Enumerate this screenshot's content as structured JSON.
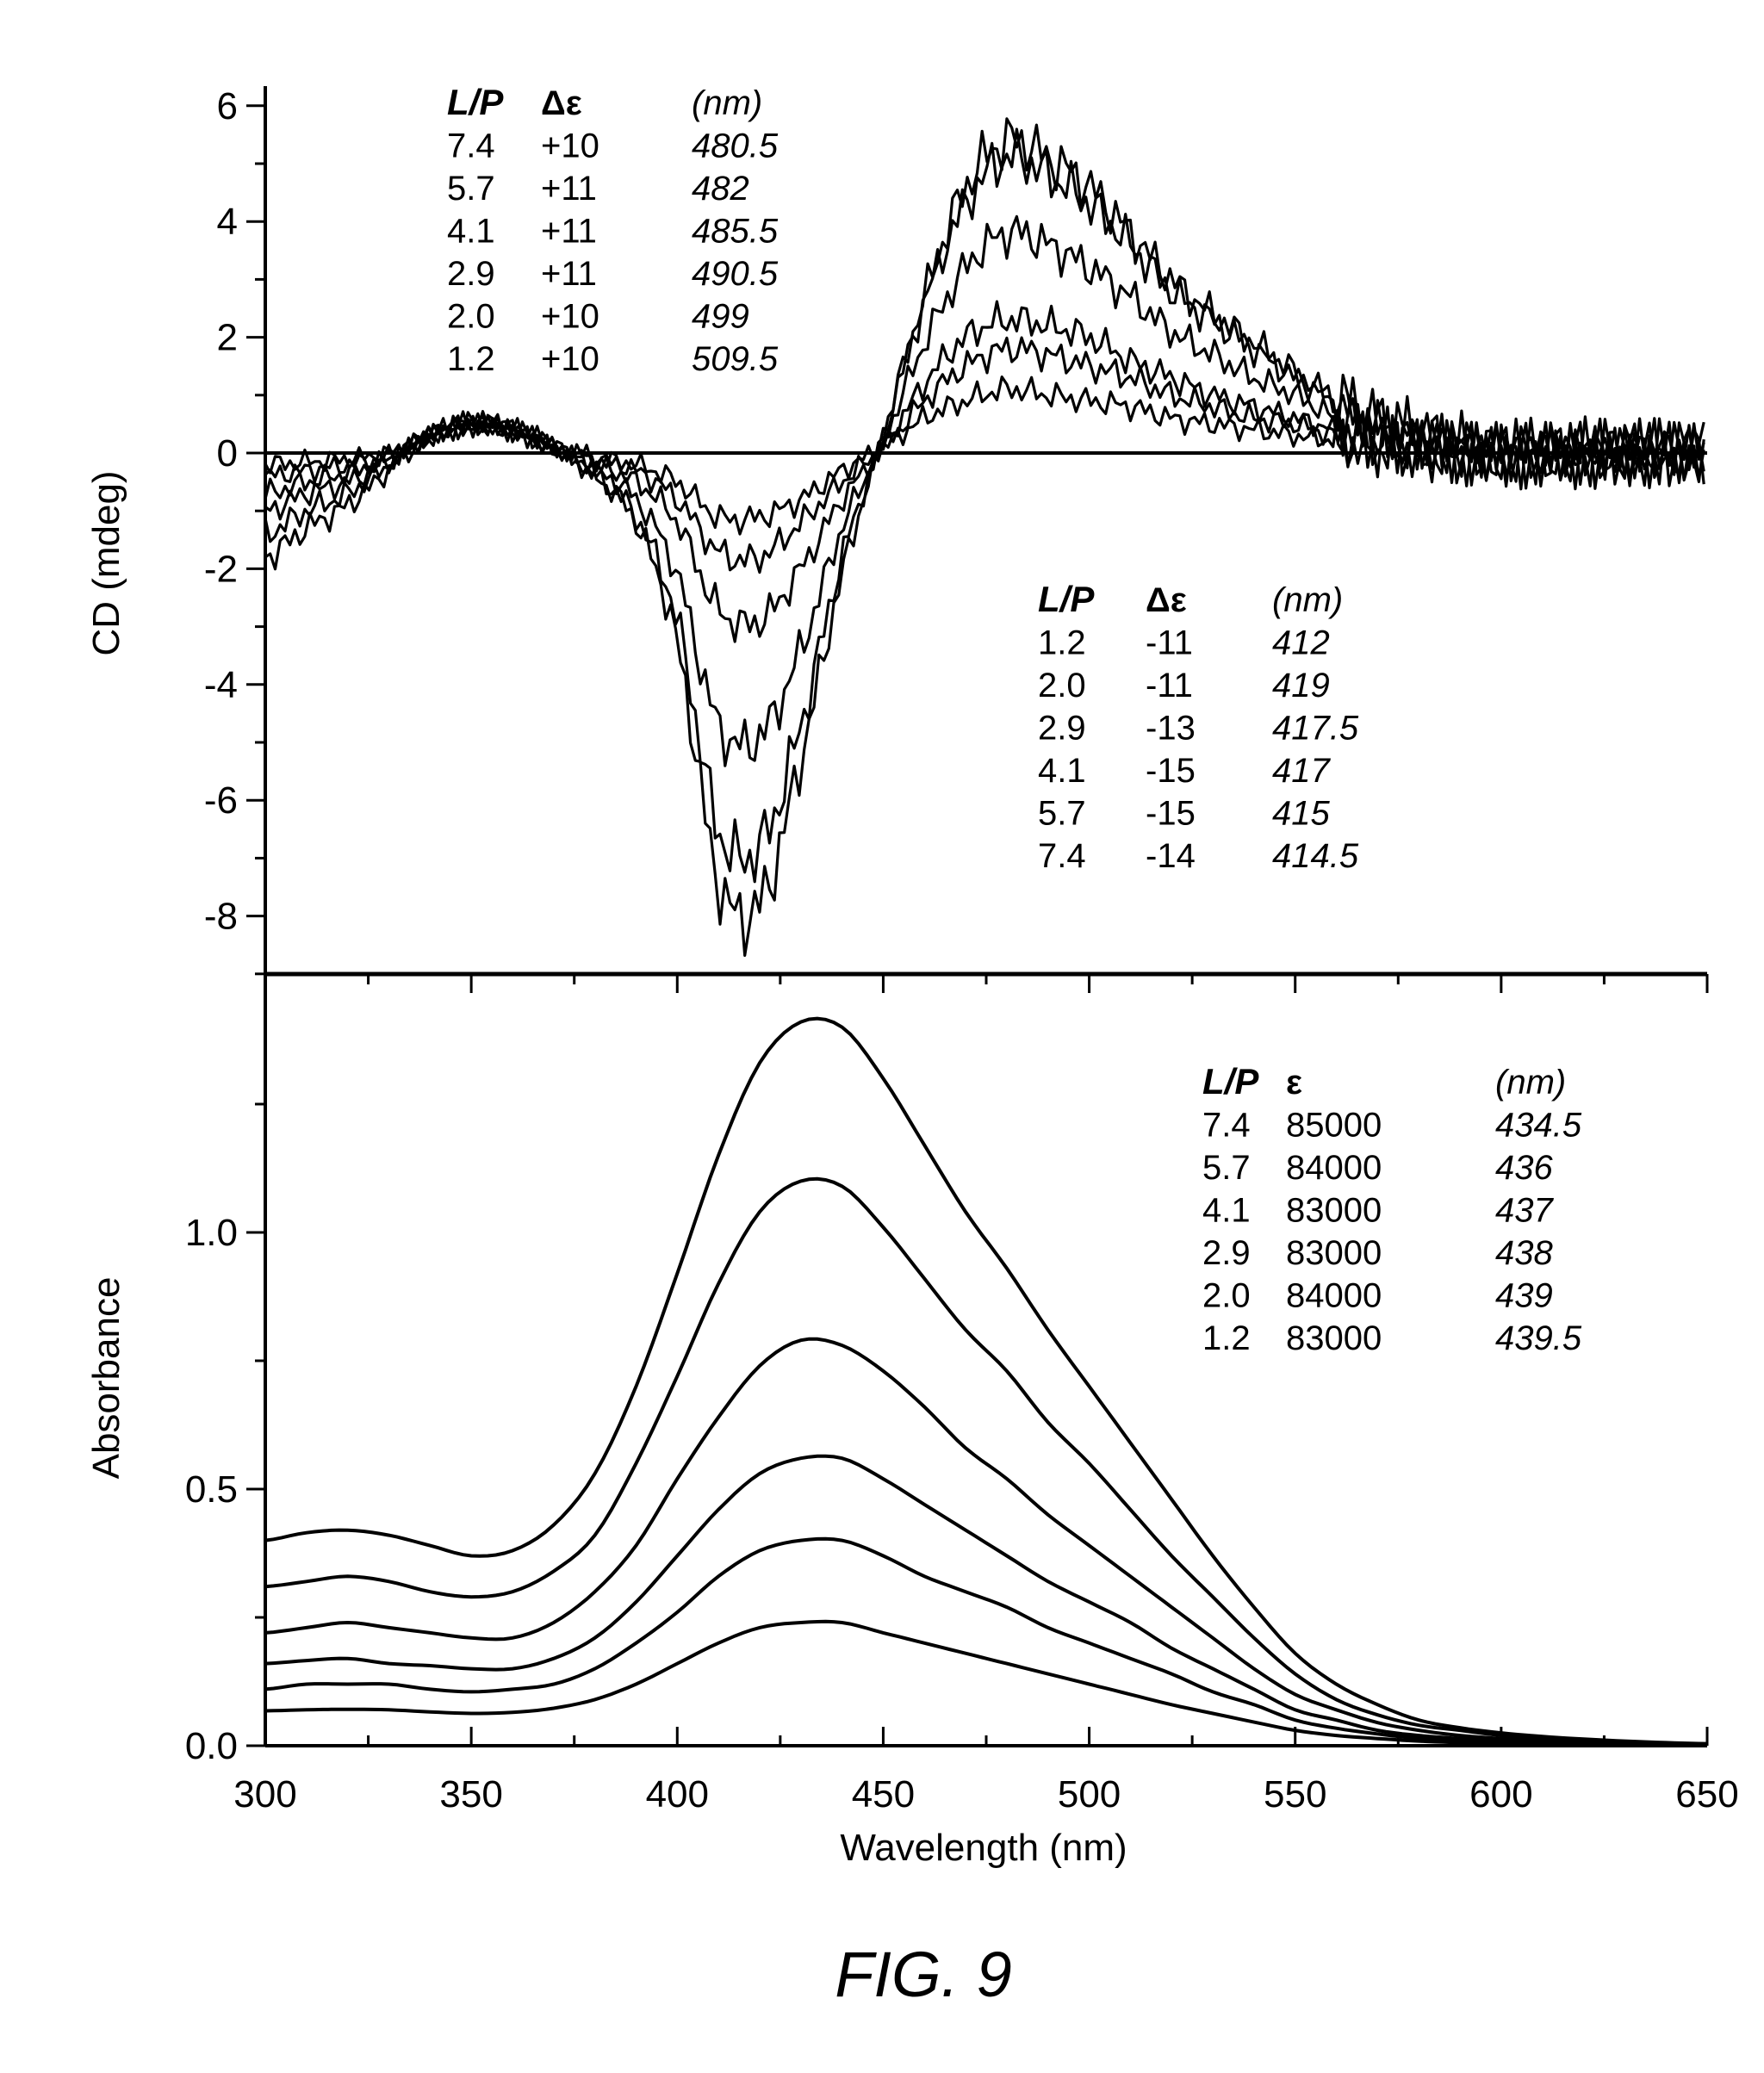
{
  "figure_label": "FIG. 9",
  "chart_data": [
    {
      "type": "line",
      "panel": "top",
      "ylabel": "CD (mdeg)",
      "xlabel": "",
      "xlim": [
        300,
        650
      ],
      "ylim": [
        -9,
        6
      ],
      "yticks": [
        "6",
        "4",
        "2",
        "0",
        "-2",
        "-4",
        "-6",
        "-8"
      ],
      "ytick_values": [
        6,
        4,
        2,
        0,
        -2,
        -4,
        -6,
        -8
      ],
      "zero_line": true,
      "x": [
        300,
        310,
        320,
        330,
        340,
        350,
        360,
        370,
        380,
        390,
        400,
        410,
        420,
        430,
        440,
        450,
        460,
        470,
        480,
        490,
        500,
        510,
        520,
        530,
        540,
        550,
        560,
        570,
        580,
        590,
        600,
        610,
        620,
        630,
        640,
        650
      ],
      "series": [
        {
          "name": "L/P 7.4",
          "values": [
            -1.8,
            -1.3,
            -0.9,
            -0.3,
            0.3,
            0.5,
            0.4,
            0.1,
            -0.4,
            -1.2,
            -3.3,
            -7.4,
            -7.8,
            -5.3,
            -2.1,
            0.3,
            2.7,
            4.6,
            5.4,
            5.1,
            4.6,
            3.8,
            3.0,
            2.4,
            1.9,
            1.4,
            0.9,
            0.5,
            0.3,
            0.1,
            0,
            0,
            0,
            0,
            0,
            0
          ]
        },
        {
          "name": "L/P 5.7",
          "values": [
            -1.4,
            -1.0,
            -0.7,
            -0.2,
            0.3,
            0.5,
            0.4,
            0.1,
            -0.4,
            -1.1,
            -2.9,
            -6.5,
            -6.8,
            -4.7,
            -1.8,
            0.3,
            2.6,
            4.3,
            5.1,
            4.8,
            4.3,
            3.6,
            2.8,
            2.3,
            1.8,
            1.3,
            0.9,
            0.5,
            0.3,
            0.1,
            0,
            0,
            0,
            0,
            0,
            0
          ]
        },
        {
          "name": "L/P 4.1",
          "values": [
            -1.0,
            -0.7,
            -0.5,
            -0.15,
            0.3,
            0.5,
            0.4,
            0.1,
            -0.3,
            -0.8,
            -2.1,
            -4.7,
            -4.9,
            -3.4,
            -1.3,
            0.2,
            1.9,
            3.2,
            3.8,
            3.6,
            3.2,
            2.7,
            2.1,
            1.7,
            1.3,
            1.0,
            0.6,
            0.4,
            0.2,
            0.1,
            0,
            0,
            0,
            0,
            0,
            0
          ]
        },
        {
          "name": "L/P 2.9",
          "values": [
            -0.7,
            -0.5,
            -0.35,
            -0.1,
            0.3,
            0.5,
            0.4,
            0.1,
            -0.2,
            -0.5,
            -1.2,
            -2.7,
            -2.9,
            -2.0,
            -0.8,
            0.1,
            1.2,
            2.0,
            2.3,
            2.2,
            2.0,
            1.6,
            1.3,
            1.0,
            0.8,
            0.6,
            0.4,
            0.2,
            0.1,
            0.05,
            0,
            0,
            0,
            0,
            0,
            0
          ]
        },
        {
          "name": "L/P 2.0",
          "values": [
            -0.4,
            -0.3,
            -0.2,
            -0.05,
            0.3,
            0.5,
            0.4,
            0.1,
            -0.1,
            -0.3,
            -0.8,
            -1.7,
            -1.8,
            -1.2,
            -0.5,
            0.1,
            0.9,
            1.5,
            1.8,
            1.7,
            1.5,
            1.3,
            1.0,
            0.8,
            0.6,
            0.5,
            0.3,
            0.2,
            0.1,
            0,
            0,
            0,
            0,
            0,
            0,
            0
          ]
        },
        {
          "name": "L/P 1.2",
          "values": [
            -0.2,
            -0.15,
            -0.1,
            0,
            0.3,
            0.5,
            0.4,
            0.1,
            -0.1,
            -0.2,
            -0.5,
            -1.1,
            -1.1,
            -0.8,
            -0.3,
            0.1,
            0.6,
            0.9,
            1.1,
            1.0,
            0.9,
            0.8,
            0.6,
            0.5,
            0.4,
            0.3,
            0.2,
            0.1,
            0.05,
            0,
            0,
            0,
            0,
            0,
            0,
            0
          ]
        }
      ],
      "tables": [
        {
          "headers": [
            "L/P",
            "Δε",
            "(nm)"
          ],
          "rows": [
            [
              "7.4",
              "+10",
              "480.5"
            ],
            [
              "5.7",
              "+11",
              "482"
            ],
            [
              "4.1",
              "+11",
              "485.5"
            ],
            [
              "2.9",
              "+11",
              "490.5"
            ],
            [
              "2.0",
              "+10",
              "499"
            ],
            [
              "1.2",
              "+10",
              "509.5"
            ]
          ]
        },
        {
          "headers": [
            "L/P",
            "Δε",
            "(nm)"
          ],
          "rows": [
            [
              "1.2",
              "-11",
              "412"
            ],
            [
              "2.0",
              "-11",
              "419"
            ],
            [
              "2.9",
              "-13",
              "417.5"
            ],
            [
              "4.1",
              "-15",
              "417"
            ],
            [
              "5.7",
              "-15",
              "415"
            ],
            [
              "7.4",
              "-14",
              "414.5"
            ]
          ]
        }
      ]
    },
    {
      "type": "line",
      "panel": "bottom",
      "ylabel": "Absorbance",
      "xlabel": "Wavelength (nm)",
      "xlim": [
        300,
        650
      ],
      "ylim": [
        0,
        1.5
      ],
      "yticks": [
        "0.0",
        "0.5",
        "1.0"
      ],
      "ytick_values": [
        0,
        0.5,
        1.0
      ],
      "xticks": [
        "300",
        "350",
        "400",
        "450",
        "500",
        "550",
        "600",
        "650"
      ],
      "xtick_values": [
        300,
        350,
        400,
        450,
        500,
        550,
        600,
        650
      ],
      "x": [
        300,
        310,
        320,
        330,
        340,
        350,
        360,
        370,
        380,
        390,
        400,
        410,
        420,
        430,
        440,
        450,
        460,
        470,
        480,
        490,
        500,
        510,
        520,
        530,
        540,
        550,
        560,
        570,
        580,
        590,
        600,
        610,
        620,
        630,
        640,
        650
      ],
      "series": [
        {
          "name": "L/P 7.4",
          "values": [
            0.4,
            0.415,
            0.42,
            0.41,
            0.39,
            0.37,
            0.38,
            0.43,
            0.53,
            0.7,
            0.92,
            1.15,
            1.33,
            1.41,
            1.4,
            1.3,
            1.17,
            1.04,
            0.93,
            0.81,
            0.7,
            0.59,
            0.48,
            0.37,
            0.27,
            0.18,
            0.12,
            0.08,
            0.05,
            0.035,
            0.025,
            0.018,
            0.013,
            0.009,
            0.006,
            0.004
          ]
        },
        {
          "name": "L/P 5.7",
          "values": [
            0.31,
            0.32,
            0.33,
            0.32,
            0.3,
            0.29,
            0.3,
            0.34,
            0.41,
            0.55,
            0.72,
            0.9,
            1.04,
            1.1,
            1.09,
            1.01,
            0.91,
            0.81,
            0.73,
            0.63,
            0.55,
            0.46,
            0.37,
            0.29,
            0.21,
            0.14,
            0.09,
            0.06,
            0.04,
            0.03,
            0.02,
            0.014,
            0.01,
            0.007,
            0.005,
            0.003
          ]
        },
        {
          "name": "L/P 4.1",
          "values": [
            0.22,
            0.23,
            0.24,
            0.23,
            0.22,
            0.21,
            0.21,
            0.24,
            0.3,
            0.39,
            0.52,
            0.64,
            0.74,
            0.79,
            0.78,
            0.73,
            0.66,
            0.58,
            0.52,
            0.45,
            0.39,
            0.33,
            0.27,
            0.21,
            0.15,
            0.1,
            0.07,
            0.045,
            0.03,
            0.02,
            0.014,
            0.01,
            0.007,
            0.005,
            0.003,
            0.002
          ]
        },
        {
          "name": "L/P 2.9",
          "values": [
            0.16,
            0.166,
            0.17,
            0.16,
            0.156,
            0.15,
            0.15,
            0.17,
            0.21,
            0.28,
            0.37,
            0.46,
            0.53,
            0.56,
            0.56,
            0.52,
            0.47,
            0.42,
            0.37,
            0.32,
            0.28,
            0.24,
            0.19,
            0.15,
            0.11,
            0.07,
            0.05,
            0.03,
            0.02,
            0.014,
            0.01,
            0.007,
            0.005,
            0.004,
            0.002,
            0.002
          ]
        },
        {
          "name": "L/P 2.0",
          "values": [
            0.11,
            0.12,
            0.12,
            0.12,
            0.11,
            0.105,
            0.11,
            0.12,
            0.15,
            0.2,
            0.26,
            0.33,
            0.38,
            0.4,
            0.4,
            0.37,
            0.33,
            0.3,
            0.27,
            0.23,
            0.2,
            0.17,
            0.14,
            0.105,
            0.08,
            0.05,
            0.034,
            0.023,
            0.014,
            0.01,
            0.007,
            0.005,
            0.004,
            0.003,
            0.002,
            0.001
          ]
        },
        {
          "name": "L/P 1.2",
          "values": [
            0.068,
            0.07,
            0.071,
            0.07,
            0.066,
            0.063,
            0.065,
            0.073,
            0.09,
            0.12,
            0.16,
            0.2,
            0.23,
            0.24,
            0.24,
            0.22,
            0.2,
            0.18,
            0.16,
            0.14,
            0.12,
            0.1,
            0.08,
            0.063,
            0.046,
            0.03,
            0.02,
            0.014,
            0.009,
            0.006,
            0.004,
            0.003,
            0.002,
            0.002,
            0.001,
            0.001
          ]
        }
      ],
      "tables": [
        {
          "headers": [
            "L/P",
            "ε",
            "(nm)"
          ],
          "rows": [
            [
              "7.4",
              "85000",
              "434.5"
            ],
            [
              "5.7",
              "84000",
              "436"
            ],
            [
              "4.1",
              "83000",
              "437"
            ],
            [
              "2.9",
              "83000",
              "438"
            ],
            [
              "2.0",
              "84000",
              "439"
            ],
            [
              "1.2",
              "83000",
              "439.5"
            ]
          ]
        }
      ]
    }
  ]
}
